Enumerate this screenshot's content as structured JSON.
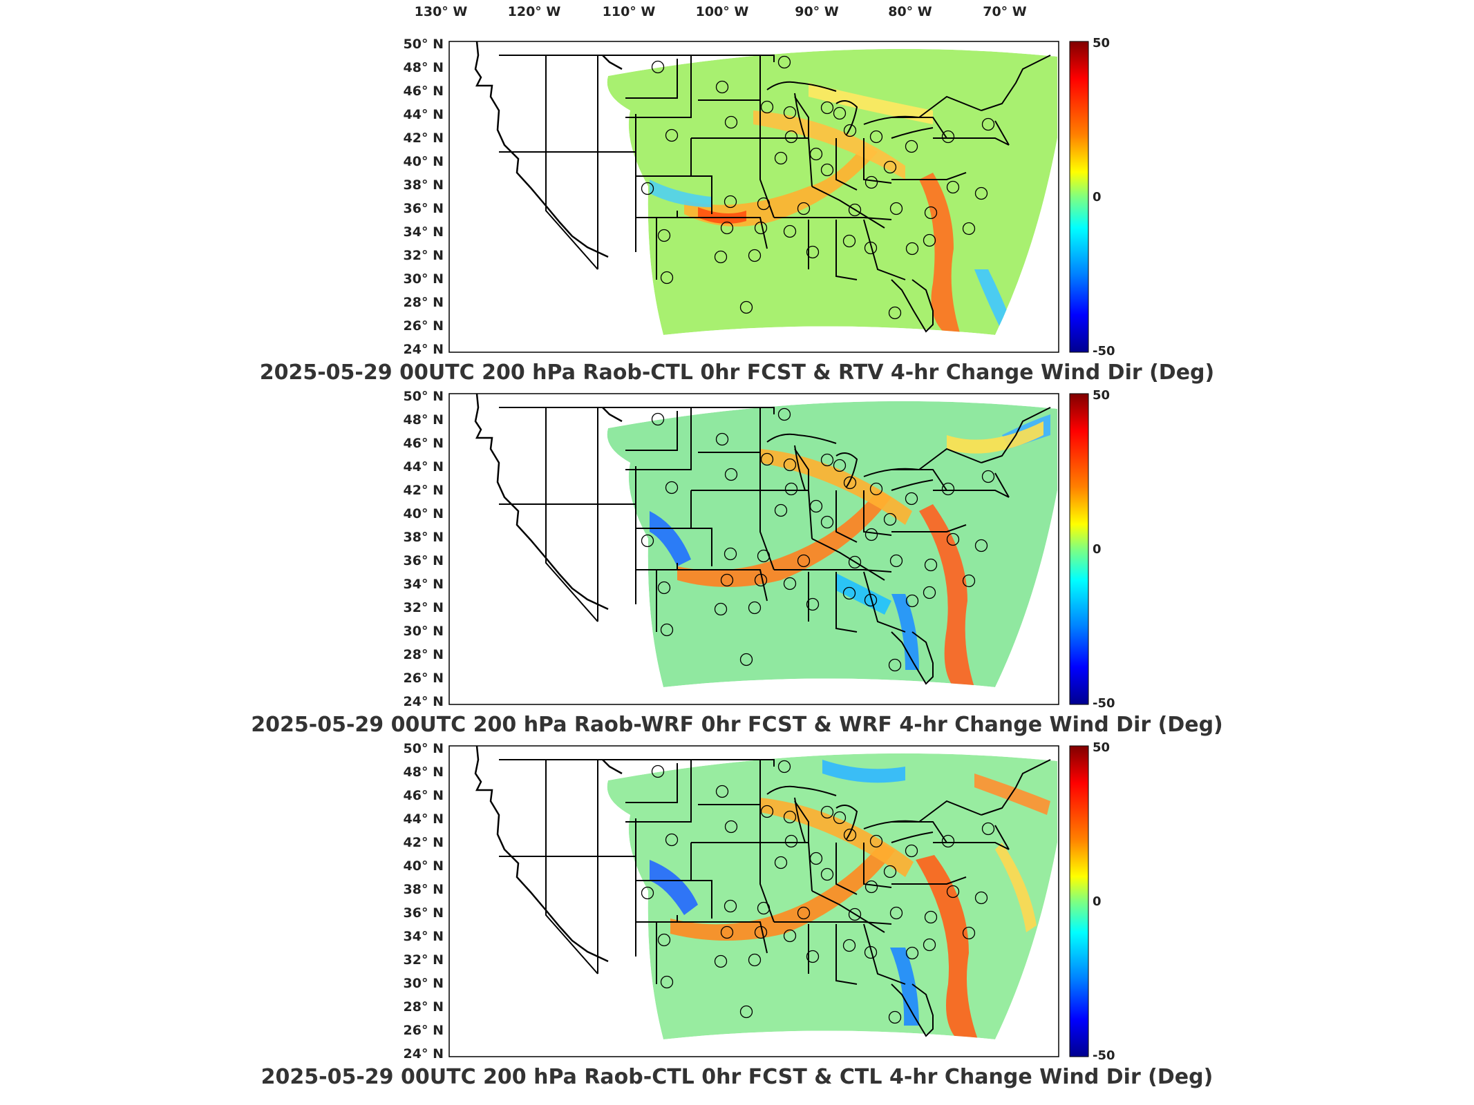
{
  "lon_labels": [
    "130° W",
    "120° W",
    "110° W",
    "100° W",
    "90° W",
    "80° W",
    "70° W"
  ],
  "lat_labels": [
    "50° N",
    "48° N",
    "46° N",
    "44° N",
    "42° N",
    "40° N",
    "38° N",
    "36° N",
    "34° N",
    "32° N",
    "30° N",
    "28° N",
    "26° N",
    "24° N"
  ],
  "colorbar": {
    "min": -50,
    "max": 50,
    "labels": [
      "50",
      "0",
      "-50"
    ]
  },
  "colors": {
    "high": "#800000",
    "mid": "#80ff80",
    "low": "#00008f",
    "map_lines": "#000000"
  },
  "panels": [
    {
      "title": "2025-05-29 00UTC 200 hPa Raob-CTL 0hr FCST & RTV 4-hr Change Wind Dir (Deg)"
    },
    {
      "title": "2025-05-29 00UTC 200 hPa Raob-WRF 0hr FCST & WRF 4-hr Change Wind Dir (Deg)"
    },
    {
      "title": "2025-05-29 00UTC 200 hPa Raob-CTL 0hr FCST & CTL 4-hr Change Wind Dir (Deg)"
    }
  ]
}
